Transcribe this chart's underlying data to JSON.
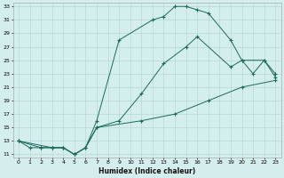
{
  "xlabel": "Humidex (Indice chaleur)",
  "bg_color": "#d4eeed",
  "grid_color": "#b8d8d5",
  "line_color": "#1a6b5a",
  "xlim": [
    -0.5,
    23.5
  ],
  "ylim": [
    10.5,
    33.5
  ],
  "xticks": [
    0,
    1,
    2,
    3,
    4,
    5,
    6,
    7,
    8,
    9,
    10,
    11,
    12,
    13,
    14,
    15,
    16,
    17,
    18,
    19,
    20,
    21,
    22,
    23
  ],
  "yticks": [
    11,
    13,
    15,
    17,
    19,
    21,
    23,
    25,
    27,
    29,
    31,
    33
  ],
  "line1_x": [
    0,
    1,
    2,
    3,
    4,
    5,
    6,
    7,
    9,
    12,
    13,
    14,
    15,
    16,
    17,
    19,
    20,
    21,
    22,
    23
  ],
  "line1_y": [
    13,
    12,
    12,
    12,
    12,
    11,
    12,
    16,
    28,
    31,
    31.5,
    33,
    33,
    32.5,
    32,
    28,
    25,
    23,
    25,
    23
  ],
  "line2_x": [
    0,
    2,
    3,
    4,
    5,
    6,
    7,
    9,
    11,
    13,
    15,
    16,
    19,
    20,
    22,
    23
  ],
  "line2_y": [
    13,
    12,
    12,
    12,
    11,
    12,
    15,
    16,
    20,
    24.5,
    27,
    28.5,
    24,
    25,
    25,
    22.5
  ],
  "line3_x": [
    0,
    3,
    4,
    5,
    6,
    7,
    11,
    14,
    17,
    20,
    23
  ],
  "line3_y": [
    13,
    12,
    12,
    11,
    12,
    15,
    16,
    17,
    19,
    21,
    22
  ]
}
